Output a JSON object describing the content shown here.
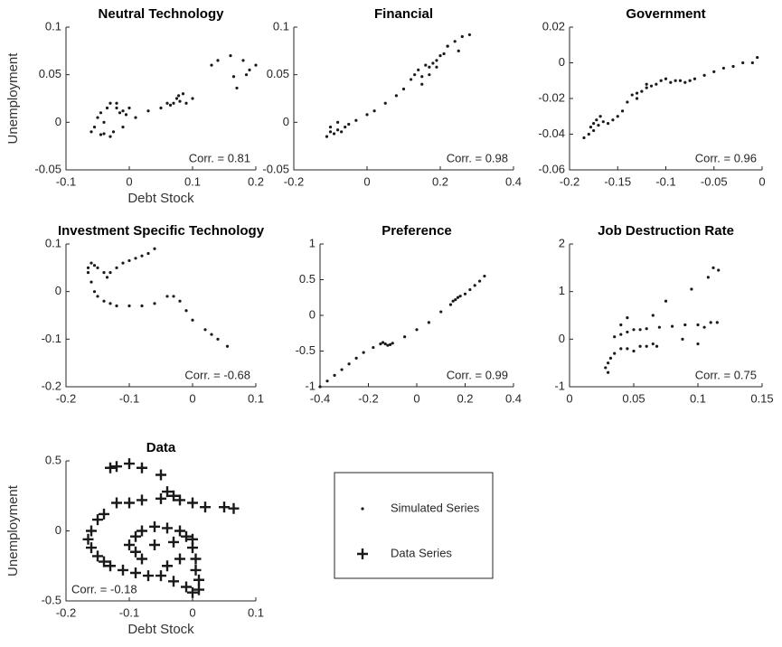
{
  "chart_data": [
    {
      "type": "scatter",
      "title": "Neutral Technology",
      "x_label": "Debt Stock",
      "y_label": "Unemployment",
      "annotation": "Corr. = 0.81",
      "annotation_corner": "lower right",
      "marker": "dot",
      "color": "#1a1a1a",
      "xlim": [
        -0.1,
        0.2
      ],
      "xticks": [
        -0.1,
        0,
        0.1,
        0.2
      ],
      "ylim": [
        -0.05,
        0.1
      ],
      "yticks": [
        -0.05,
        0,
        0.05,
        0.1
      ],
      "x": [
        -0.06,
        -0.055,
        -0.05,
        -0.045,
        -0.04,
        -0.035,
        -0.03,
        -0.025,
        -0.02,
        -0.015,
        -0.01,
        -0.005,
        0,
        -0.045,
        -0.03,
        -0.02,
        -0.01,
        -0.04,
        0.01,
        0.03,
        0.05,
        0.06,
        0.07,
        0.075,
        0.08,
        0.085,
        0.09,
        0.1,
        0.065,
        0.078,
        0.13,
        0.14,
        0.16,
        0.17,
        0.18,
        0.19,
        0.2,
        0.165,
        0.185
      ],
      "values": [
        -0.01,
        -0.005,
        0.005,
        0.01,
        0,
        0.015,
        0.02,
        -0.01,
        0.015,
        0.01,
        0.012,
        0.008,
        0.015,
        -0.013,
        -0.015,
        0.02,
        -0.005,
        -0.012,
        0.005,
        0.012,
        0.015,
        0.02,
        0.02,
        0.025,
        0.022,
        0.03,
        0.02,
        0.025,
        0.018,
        0.028,
        0.06,
        0.065,
        0.07,
        0.036,
        0.065,
        0.055,
        0.06,
        0.048,
        0.05
      ]
    },
    {
      "type": "scatter",
      "title": "Financial",
      "annotation": "Corr. = 0.98",
      "annotation_corner": "lower right",
      "marker": "dot",
      "color": "#1a1a1a",
      "xlim": [
        -0.2,
        0.4
      ],
      "xticks": [
        -0.2,
        0,
        0.2,
        0.4
      ],
      "ylim": [
        -0.05,
        0.1
      ],
      "yticks": [
        -0.05,
        0,
        0.05,
        0.1
      ],
      "x": [
        -0.11,
        -0.1,
        -0.09,
        -0.08,
        -0.07,
        -0.06,
        -0.05,
        -0.1,
        -0.08,
        -0.03,
        0,
        0.02,
        0.05,
        0.08,
        0.1,
        0.12,
        0.13,
        0.14,
        0.15,
        0.16,
        0.17,
        0.18,
        0.19,
        0.2,
        0.21,
        0.22,
        0.24,
        0.26,
        0.28,
        0.15,
        0.17,
        0.19,
        0.22,
        0.25
      ],
      "values": [
        -0.015,
        -0.01,
        -0.012,
        -0.008,
        -0.01,
        -0.005,
        -0.002,
        -0.005,
        0,
        0.002,
        0.008,
        0.012,
        0.02,
        0.028,
        0.035,
        0.045,
        0.05,
        0.055,
        0.048,
        0.06,
        0.058,
        0.062,
        0.065,
        0.07,
        0.072,
        0.08,
        0.085,
        0.09,
        0.092,
        0.04,
        0.05,
        0.058,
        0.08,
        0.075
      ]
    },
    {
      "type": "scatter",
      "title": "Government",
      "annotation": "Corr. = 0.96",
      "annotation_corner": "lower right",
      "marker": "dot",
      "color": "#1a1a1a",
      "xlim": [
        -0.2,
        0
      ],
      "xticks": [
        -0.2,
        -0.15,
        -0.1,
        -0.05,
        0
      ],
      "ylim": [
        -0.06,
        0.02
      ],
      "yticks": [
        -0.06,
        -0.04,
        -0.02,
        0,
        0.02
      ],
      "x": [
        -0.185,
        -0.18,
        -0.178,
        -0.175,
        -0.172,
        -0.17,
        -0.168,
        -0.165,
        -0.16,
        -0.155,
        -0.15,
        -0.145,
        -0.14,
        -0.135,
        -0.13,
        -0.125,
        -0.12,
        -0.115,
        -0.11,
        -0.105,
        -0.1,
        -0.095,
        -0.09,
        -0.085,
        -0.08,
        -0.075,
        -0.07,
        -0.06,
        -0.05,
        -0.04,
        -0.03,
        -0.02,
        -0.01,
        -0.005,
        -0.175,
        -0.13,
        -0.12
      ],
      "values": [
        -0.042,
        -0.04,
        -0.036,
        -0.034,
        -0.032,
        -0.035,
        -0.03,
        -0.033,
        -0.034,
        -0.032,
        -0.03,
        -0.027,
        -0.022,
        -0.018,
        -0.017,
        -0.016,
        -0.014,
        -0.013,
        -0.012,
        -0.01,
        -0.009,
        -0.011,
        -0.01,
        -0.01,
        -0.011,
        -0.01,
        -0.009,
        -0.007,
        -0.005,
        -0.003,
        -0.002,
        0,
        0,
        0.003,
        -0.038,
        -0.02,
        -0.012
      ]
    },
    {
      "type": "scatter",
      "title": "Investment Specific Technology",
      "annotation": "Corr. = -0.68",
      "annotation_corner": "lower right",
      "marker": "dot",
      "color": "#1a1a1a",
      "xlim": [
        -0.2,
        0.1
      ],
      "xticks": [
        -0.2,
        -0.1,
        0,
        0.1
      ],
      "ylim": [
        -0.2,
        0.1
      ],
      "yticks": [
        -0.2,
        -0.1,
        0,
        0.1
      ],
      "x": [
        -0.165,
        -0.16,
        -0.155,
        -0.15,
        -0.14,
        -0.135,
        -0.13,
        -0.12,
        -0.11,
        -0.1,
        -0.09,
        -0.08,
        -0.07,
        -0.06,
        -0.165,
        -0.16,
        -0.155,
        -0.15,
        -0.14,
        -0.13,
        -0.12,
        -0.1,
        -0.08,
        -0.06,
        -0.04,
        -0.03,
        -0.02,
        -0.01,
        0,
        0.02,
        0.03,
        0.04,
        0.055
      ],
      "values": [
        0.05,
        0.06,
        0.055,
        0.05,
        0.04,
        0.03,
        0.04,
        0.05,
        0.06,
        0.065,
        0.07,
        0.075,
        0.08,
        0.09,
        0.04,
        0.02,
        0,
        -0.01,
        -0.02,
        -0.025,
        -0.03,
        -0.03,
        -0.03,
        -0.025,
        -0.01,
        -0.01,
        -0.02,
        -0.04,
        -0.06,
        -0.08,
        -0.09,
        -0.1,
        -0.115
      ]
    },
    {
      "type": "scatter",
      "title": "Preference",
      "annotation": "Corr. = 0.99",
      "annotation_corner": "lower right",
      "marker": "dot",
      "color": "#1a1a1a",
      "xlim": [
        -0.4,
        0.4
      ],
      "xticks": [
        -0.4,
        -0.2,
        0,
        0.2,
        0.4
      ],
      "ylim": [
        -1,
        1
      ],
      "yticks": [
        -1,
        -0.5,
        0,
        0.5,
        1
      ],
      "x": [
        -0.4,
        -0.37,
        -0.34,
        -0.31,
        -0.28,
        -0.25,
        -0.22,
        -0.18,
        -0.15,
        -0.14,
        -0.13,
        -0.12,
        -0.11,
        -0.1,
        -0.05,
        0,
        0.05,
        0.1,
        0.14,
        0.15,
        0.16,
        0.17,
        0.18,
        0.2,
        0.22,
        0.24,
        0.26,
        0.28
      ],
      "values": [
        -1,
        -0.92,
        -0.84,
        -0.76,
        -0.68,
        -0.6,
        -0.52,
        -0.45,
        -0.4,
        -0.38,
        -0.4,
        -0.42,
        -0.41,
        -0.39,
        -0.3,
        -0.2,
        -0.1,
        0.05,
        0.15,
        0.2,
        0.22,
        0.25,
        0.27,
        0.3,
        0.36,
        0.42,
        0.48,
        0.55
      ]
    },
    {
      "type": "scatter",
      "title": "Job Destruction Rate",
      "annotation": "Corr. = 0.75",
      "annotation_corner": "lower right",
      "marker": "dot",
      "color": "#1a1a1a",
      "xlim": [
        0,
        0.15
      ],
      "xticks": [
        0,
        0.05,
        0.1,
        0.15
      ],
      "ylim": [
        -1,
        2
      ],
      "yticks": [
        -1,
        0,
        1,
        2
      ],
      "x": [
        0.028,
        0.03,
        0.032,
        0.035,
        0.04,
        0.045,
        0.05,
        0.055,
        0.06,
        0.065,
        0.068,
        0.035,
        0.04,
        0.045,
        0.05,
        0.055,
        0.06,
        0.07,
        0.08,
        0.09,
        0.1,
        0.11,
        0.115,
        0.04,
        0.045,
        0.065,
        0.075,
        0.088,
        0.1,
        0.095,
        0.108,
        0.112,
        0.116,
        0.03,
        0.105
      ],
      "values": [
        -0.6,
        -0.5,
        -0.4,
        -0.3,
        -0.2,
        -0.2,
        -0.25,
        -0.15,
        -0.15,
        -0.1,
        -0.15,
        0.05,
        0.1,
        0.15,
        0.2,
        0.2,
        0.22,
        0.25,
        0.27,
        0.3,
        0.3,
        0.35,
        0.35,
        0.3,
        0.45,
        0.5,
        0.8,
        0,
        -0.1,
        1.05,
        1.3,
        1.5,
        1.45,
        -0.7,
        0.25
      ]
    },
    {
      "type": "scatter",
      "title": "Data",
      "x_label": "Debt Stock",
      "y_label": "Unemployment",
      "annotation": "Corr. = -0.18",
      "annotation_corner": "lower left",
      "marker": "plus",
      "color": "#1a1a1a",
      "xlim": [
        -0.2,
        0.1
      ],
      "xticks": [
        -0.2,
        -0.1,
        0,
        0.1
      ],
      "ylim": [
        -0.5,
        0.5
      ],
      "yticks": [
        -0.5,
        0,
        0.5
      ],
      "x": [
        -0.13,
        -0.12,
        -0.1,
        -0.08,
        -0.05,
        -0.12,
        -0.1,
        -0.08,
        -0.05,
        -0.04,
        -0.03,
        -0.02,
        0,
        0.02,
        0.05,
        0.065,
        -0.14,
        -0.15,
        -0.16,
        -0.165,
        -0.16,
        -0.15,
        -0.14,
        -0.13,
        -0.11,
        -0.09,
        -0.1,
        -0.09,
        -0.08,
        -0.06,
        -0.04,
        -0.02,
        -0.01,
        0,
        0,
        0.005,
        0.005,
        0.01,
        0.01,
        -0.01,
        -0.03,
        -0.05,
        -0.07,
        -0.08,
        -0.09,
        -0.06,
        -0.03,
        -0.02,
        -0.04,
        0
      ],
      "values": [
        0.45,
        0.46,
        0.48,
        0.45,
        0.4,
        0.2,
        0.2,
        0.22,
        0.23,
        0.28,
        0.25,
        0.22,
        0.2,
        0.17,
        0.17,
        0.16,
        0.12,
        0.08,
        0,
        -0.06,
        -0.12,
        -0.18,
        -0.22,
        -0.25,
        -0.28,
        -0.3,
        -0.1,
        -0.04,
        0,
        0.03,
        0.02,
        0,
        -0.04,
        -0.06,
        -0.12,
        -0.2,
        -0.28,
        -0.35,
        -0.42,
        -0.4,
        -0.36,
        -0.32,
        -0.32,
        -0.2,
        -0.15,
        -0.1,
        -0.08,
        -0.2,
        -0.25,
        -0.44
      ]
    }
  ],
  "legend": {
    "entries": [
      {
        "label": "Simulated Series",
        "marker": "dot"
      },
      {
        "label": "Data Series",
        "marker": "plus"
      }
    ]
  }
}
